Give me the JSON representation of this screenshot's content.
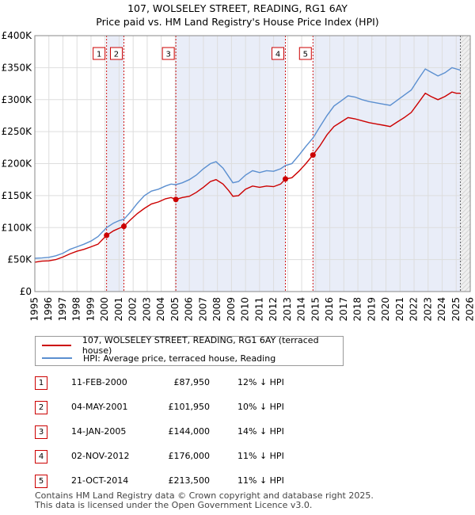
{
  "header": {
    "title": "107, WOLSELEY STREET, READING, RG1 6AY",
    "subtitle": "Price paid vs. HM Land Registry's House Price Index (HPI)"
  },
  "chart_data": {
    "type": "line",
    "title": "107, WOLSELEY STREET, READING, RG1 6AY",
    "subtitle": "Price paid vs. HM Land Registry's House Price Index (HPI)",
    "xlabel": "",
    "ylabel": "",
    "xlim": [
      1995,
      2026
    ],
    "ylim": [
      0,
      400000
    ],
    "x_ticks": [
      1995,
      1996,
      1997,
      1998,
      1999,
      2000,
      2001,
      2002,
      2003,
      2004,
      2005,
      2006,
      2007,
      2008,
      2009,
      2010,
      2011,
      2012,
      2013,
      2014,
      2015,
      2016,
      2017,
      2018,
      2019,
      2020,
      2021,
      2022,
      2023,
      2024,
      2025,
      2026
    ],
    "y_ticks": [
      {
        "value": 0,
        "label": "£0"
      },
      {
        "value": 50000,
        "label": "£50K"
      },
      {
        "value": 100000,
        "label": "£100K"
      },
      {
        "value": 150000,
        "label": "£150K"
      },
      {
        "value": 200000,
        "label": "£200K"
      },
      {
        "value": 250000,
        "label": "£250K"
      },
      {
        "value": 300000,
        "label": "£300K"
      },
      {
        "value": 350000,
        "label": "£350K"
      },
      {
        "value": 400000,
        "label": "£400K"
      }
    ],
    "grid": true,
    "shaded_spans": [
      [
        2000.11,
        2001.34
      ],
      [
        2005.04,
        2012.84
      ],
      [
        2014.8,
        2025.3
      ]
    ],
    "future_start": 2025.3,
    "series": [
      {
        "name": "107, WOLSELEY STREET, READING, RG1 6AY (terraced house)",
        "color": "#cc0000",
        "points": [
          [
            1995.0,
            46000
          ],
          [
            1995.5,
            47500
          ],
          [
            1996.0,
            48000
          ],
          [
            1996.5,
            50000
          ],
          [
            1997.0,
            54000
          ],
          [
            1997.5,
            59000
          ],
          [
            1998.0,
            63000
          ],
          [
            1998.5,
            66000
          ],
          [
            1999.0,
            70000
          ],
          [
            1999.5,
            74000
          ],
          [
            2000.11,
            87950
          ],
          [
            2000.6,
            95000
          ],
          [
            2001.0,
            99000
          ],
          [
            2001.34,
            101950
          ],
          [
            2001.8,
            112000
          ],
          [
            2002.3,
            122000
          ],
          [
            2002.8,
            130000
          ],
          [
            2003.3,
            137000
          ],
          [
            2003.8,
            140000
          ],
          [
            2004.3,
            145000
          ],
          [
            2004.7,
            147000
          ],
          [
            2005.04,
            144000
          ],
          [
            2005.5,
            147000
          ],
          [
            2006.0,
            149000
          ],
          [
            2006.5,
            155000
          ],
          [
            2007.0,
            163000
          ],
          [
            2007.5,
            172000
          ],
          [
            2007.9,
            175000
          ],
          [
            2008.4,
            168000
          ],
          [
            2008.8,
            158000
          ],
          [
            2009.1,
            149000
          ],
          [
            2009.5,
            150000
          ],
          [
            2010.0,
            160000
          ],
          [
            2010.5,
            165000
          ],
          [
            2011.0,
            163000
          ],
          [
            2011.5,
            165000
          ],
          [
            2012.0,
            164000
          ],
          [
            2012.5,
            168000
          ],
          [
            2012.84,
            176000
          ],
          [
            2013.3,
            178000
          ],
          [
            2013.8,
            188000
          ],
          [
            2014.3,
            200000
          ],
          [
            2014.8,
            213500
          ],
          [
            2015.3,
            228000
          ],
          [
            2015.8,
            245000
          ],
          [
            2016.3,
            258000
          ],
          [
            2016.8,
            265000
          ],
          [
            2017.3,
            272000
          ],
          [
            2017.8,
            270000
          ],
          [
            2018.3,
            267000
          ],
          [
            2018.8,
            264000
          ],
          [
            2019.3,
            262000
          ],
          [
            2019.8,
            260000
          ],
          [
            2020.3,
            258000
          ],
          [
            2020.8,
            265000
          ],
          [
            2021.3,
            272000
          ],
          [
            2021.8,
            280000
          ],
          [
            2022.3,
            295000
          ],
          [
            2022.8,
            310000
          ],
          [
            2023.2,
            305000
          ],
          [
            2023.7,
            300000
          ],
          [
            2024.2,
            305000
          ],
          [
            2024.7,
            312000
          ],
          [
            2025.0,
            310000
          ],
          [
            2025.3,
            310000
          ]
        ]
      },
      {
        "name": "HPI: Average price, terraced house, Reading",
        "color": "#5b8fd0",
        "points": [
          [
            1995.0,
            52000
          ],
          [
            1995.5,
            52500
          ],
          [
            1996.0,
            53500
          ],
          [
            1996.5,
            56000
          ],
          [
            1997.0,
            60000
          ],
          [
            1997.5,
            66000
          ],
          [
            1998.0,
            70000
          ],
          [
            1998.5,
            74000
          ],
          [
            1999.0,
            79000
          ],
          [
            1999.5,
            86000
          ],
          [
            2000.11,
            100000
          ],
          [
            2000.6,
            107000
          ],
          [
            2001.0,
            111000
          ],
          [
            2001.34,
            113000
          ],
          [
            2001.8,
            124000
          ],
          [
            2002.3,
            138000
          ],
          [
            2002.8,
            150000
          ],
          [
            2003.3,
            157000
          ],
          [
            2003.8,
            160000
          ],
          [
            2004.3,
            165000
          ],
          [
            2004.7,
            168000
          ],
          [
            2005.04,
            167000
          ],
          [
            2005.5,
            170000
          ],
          [
            2006.0,
            175000
          ],
          [
            2006.5,
            182000
          ],
          [
            2007.0,
            192000
          ],
          [
            2007.5,
            200000
          ],
          [
            2007.9,
            203000
          ],
          [
            2008.4,
            193000
          ],
          [
            2008.8,
            180000
          ],
          [
            2009.1,
            170000
          ],
          [
            2009.5,
            172000
          ],
          [
            2010.0,
            182000
          ],
          [
            2010.5,
            189000
          ],
          [
            2011.0,
            186000
          ],
          [
            2011.5,
            189000
          ],
          [
            2012.0,
            188000
          ],
          [
            2012.5,
            192000
          ],
          [
            2012.84,
            197000
          ],
          [
            2013.3,
            200000
          ],
          [
            2013.8,
            213000
          ],
          [
            2014.3,
            227000
          ],
          [
            2014.8,
            240000
          ],
          [
            2015.3,
            258000
          ],
          [
            2015.8,
            275000
          ],
          [
            2016.3,
            290000
          ],
          [
            2016.8,
            298000
          ],
          [
            2017.3,
            306000
          ],
          [
            2017.8,
            304000
          ],
          [
            2018.3,
            300000
          ],
          [
            2018.8,
            297000
          ],
          [
            2019.3,
            295000
          ],
          [
            2019.8,
            293000
          ],
          [
            2020.3,
            291000
          ],
          [
            2020.8,
            299000
          ],
          [
            2021.3,
            307000
          ],
          [
            2021.8,
            315000
          ],
          [
            2022.3,
            332000
          ],
          [
            2022.8,
            348000
          ],
          [
            2023.2,
            343000
          ],
          [
            2023.7,
            337000
          ],
          [
            2024.2,
            342000
          ],
          [
            2024.7,
            350000
          ],
          [
            2025.0,
            348000
          ],
          [
            2025.3,
            346000
          ]
        ]
      }
    ],
    "sale_markers": [
      {
        "id": "1",
        "x": 2000.11,
        "y": 87950
      },
      {
        "id": "2",
        "x": 2001.34,
        "y": 101950
      },
      {
        "id": "3",
        "x": 2005.04,
        "y": 144000
      },
      {
        "id": "4",
        "x": 2012.84,
        "y": 176000
      },
      {
        "id": "5",
        "x": 2014.8,
        "y": 213500
      }
    ]
  },
  "legend": {
    "items": [
      {
        "label": "107, WOLSELEY STREET, READING, RG1 6AY (terraced house)",
        "color": "#cc0000"
      },
      {
        "label": "HPI: Average price, terraced house, Reading",
        "color": "#5b8fd0"
      }
    ]
  },
  "sales": [
    {
      "num": "1",
      "date": "11-FEB-2000",
      "price": "£87,950",
      "hpi": "12% ↓ HPI"
    },
    {
      "num": "2",
      "date": "04-MAY-2001",
      "price": "£101,950",
      "hpi": "10% ↓ HPI"
    },
    {
      "num": "3",
      "date": "14-JAN-2005",
      "price": "£144,000",
      "hpi": "14% ↓ HPI"
    },
    {
      "num": "4",
      "date": "02-NOV-2012",
      "price": "£176,000",
      "hpi": "11% ↓ HPI"
    },
    {
      "num": "5",
      "date": "21-OCT-2014",
      "price": "£213,500",
      "hpi": "11% ↓ HPI"
    }
  ],
  "footer": {
    "line1": "Contains HM Land Registry data © Crown copyright and database right 2025.",
    "line2": "This data is licensed under the Open Government Licence v3.0."
  }
}
